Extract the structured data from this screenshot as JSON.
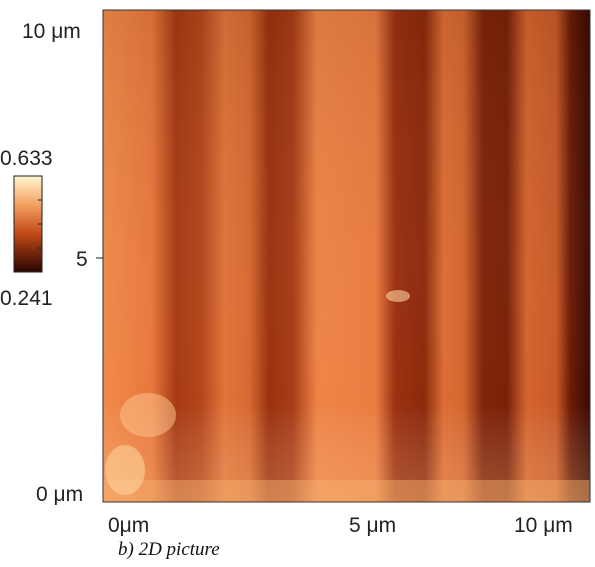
{
  "figure": {
    "y_axis": {
      "top": "10 μm",
      "middle": "5",
      "bottom": "0 μm"
    },
    "x_axis": {
      "left": "0μm",
      "middle": "5 μm",
      "right": "10 μm"
    },
    "colorbar": {
      "max": "0.633",
      "min": "0.241"
    },
    "caption": "b) 2D picture"
  }
}
